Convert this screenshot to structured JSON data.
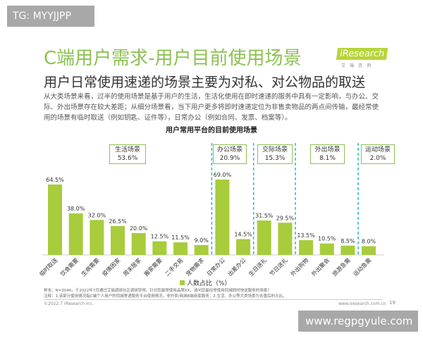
{
  "watermark_top": "TG: MYYJJPP",
  "watermark_bottom": "www.regpgyule.com",
  "title": "C端用户需求-用户目前使用场景",
  "subtitle": "用户日常使用速递的场景主要为对私、对公物品的取送",
  "description": "从大类场景来看，过半的使用场景是基于用户的生活，生活化使用在即时速递的服务中具有一定影响，与办公、交际、外出场景存在较大差距；从细分场景看，当下用户更多将即时速递定位为非售卖物品的两点间传输，最经常使用的场景有临时取送（例如钥匙、证件等），日常办公（例如合同、发票、档案等）。",
  "logo": {
    "name": "iResearch",
    "sub": "艾瑞咨询"
  },
  "notes": [
    "样本：N=3046，于2022年7月通过艾瑞调研社区调研获得。针对您最常使用品牌XX，请问您最经常使用同城即时快送服务的场景？",
    "注释：1.该部分使用情况指C端个人用户的同城寄递服务平台使用情况，非外卖/商城B端商家服务；2.生活、办公等大类场景为去重后的占比。"
  ],
  "footer": {
    "copyright": "©2022.7 iResearch Inc.",
    "url": "www.iresearch.com.cn",
    "page": "19"
  },
  "colors": {
    "bar": "#a8cc3c",
    "title": "#8cc152",
    "divider": "#29b6d6"
  },
  "chart_data": {
    "type": "bar",
    "title": "用户常用平台的目前使用场景",
    "categories": [
      "临时取送",
      "饮食需要",
      "生病需要",
      "疫情困家",
      "周末居家",
      "搬家需要",
      "二手交易",
      "宠物需求",
      "日常办公",
      "出差办公",
      "生日送礼",
      "节日送礼",
      "外出购物",
      "外出聚会",
      "旅游急需",
      "运动急需"
    ],
    "series": [
      {
        "name": "人数占比（%）",
        "values": [
          64.5,
          38.0,
          32.0,
          26.5,
          20.0,
          12.5,
          11.5,
          9.0,
          69.0,
          14.5,
          31.5,
          29.5,
          13.5,
          10.5,
          8.5,
          8.0
        ]
      }
    ],
    "value_labels": [
      "64.5%",
      "38.0%",
      "32.0%",
      "26.5%",
      "20.0%",
      "12.5%",
      "11.5%",
      "9.0%",
      "69.0%",
      "14.5%",
      "31.5%",
      "29.5%",
      "13.5%",
      "10.5%",
      "8.5%",
      "8.0%"
    ],
    "groups": [
      {
        "name": "生活场景",
        "value": "53.6%"
      },
      {
        "name": "办公场景",
        "value": "20.9%"
      },
      {
        "name": "交际场景",
        "value": "15.3%"
      },
      {
        "name": "外出场景",
        "value": "8.1%"
      },
      {
        "name": "运动场景",
        "value": "2.0%"
      }
    ],
    "legend": "bottom",
    "grid": false
  }
}
